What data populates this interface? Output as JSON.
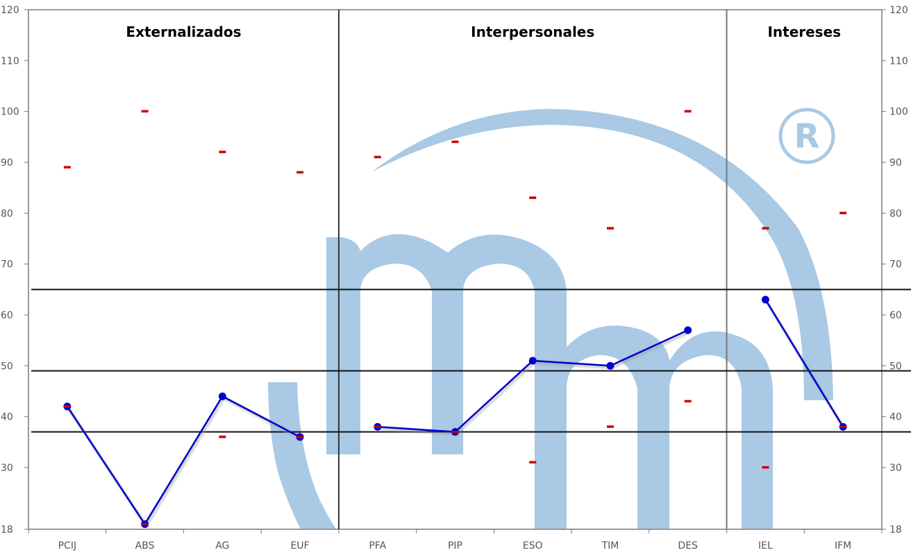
{
  "chart_data": {
    "type": "line",
    "categories": [
      "PCIJ",
      "ABS",
      "AG",
      "EUF",
      "PFA",
      "PIP",
      "ESO",
      "TIM",
      "DES",
      "IEL",
      "IFM"
    ],
    "groups": [
      {
        "title": "Externalizados",
        "categories": [
          "PCIJ",
          "ABS",
          "AG",
          "EUF"
        ]
      },
      {
        "title": "Interpersonales",
        "categories": [
          "PFA",
          "PIP",
          "ESO",
          "TIM",
          "DES"
        ]
      },
      {
        "title": "Intereses",
        "categories": [
          "IEL",
          "IFM"
        ]
      }
    ],
    "series": [
      {
        "values": [
          42,
          19,
          44,
          36,
          38,
          37,
          51,
          50,
          57,
          63,
          38
        ],
        "color": "#0000cc",
        "segments": [
          [
            0,
            3
          ],
          [
            4,
            8
          ],
          [
            9,
            10
          ]
        ]
      }
    ],
    "markers": [
      [
        89,
        42
      ],
      [
        100,
        19
      ],
      [
        92,
        36
      ],
      [
        88,
        36
      ],
      [
        91,
        38
      ],
      [
        94,
        37
      ],
      [
        83,
        31
      ],
      [
        77,
        38
      ],
      [
        100,
        43
      ],
      [
        77,
        30
      ],
      [
        80,
        38
      ]
    ],
    "marker_color": "#cc0000",
    "reference_lines": [
      65,
      49,
      37
    ],
    "y_ticks": [
      18,
      30,
      40,
      50,
      60,
      70,
      80,
      90,
      100,
      110,
      120
    ],
    "ylim": [
      18,
      120
    ],
    "grid": false,
    "xlabel": "",
    "ylabel": "",
    "watermark": {
      "label": "mm",
      "mark": "®",
      "color": "#a9c9e4"
    }
  }
}
